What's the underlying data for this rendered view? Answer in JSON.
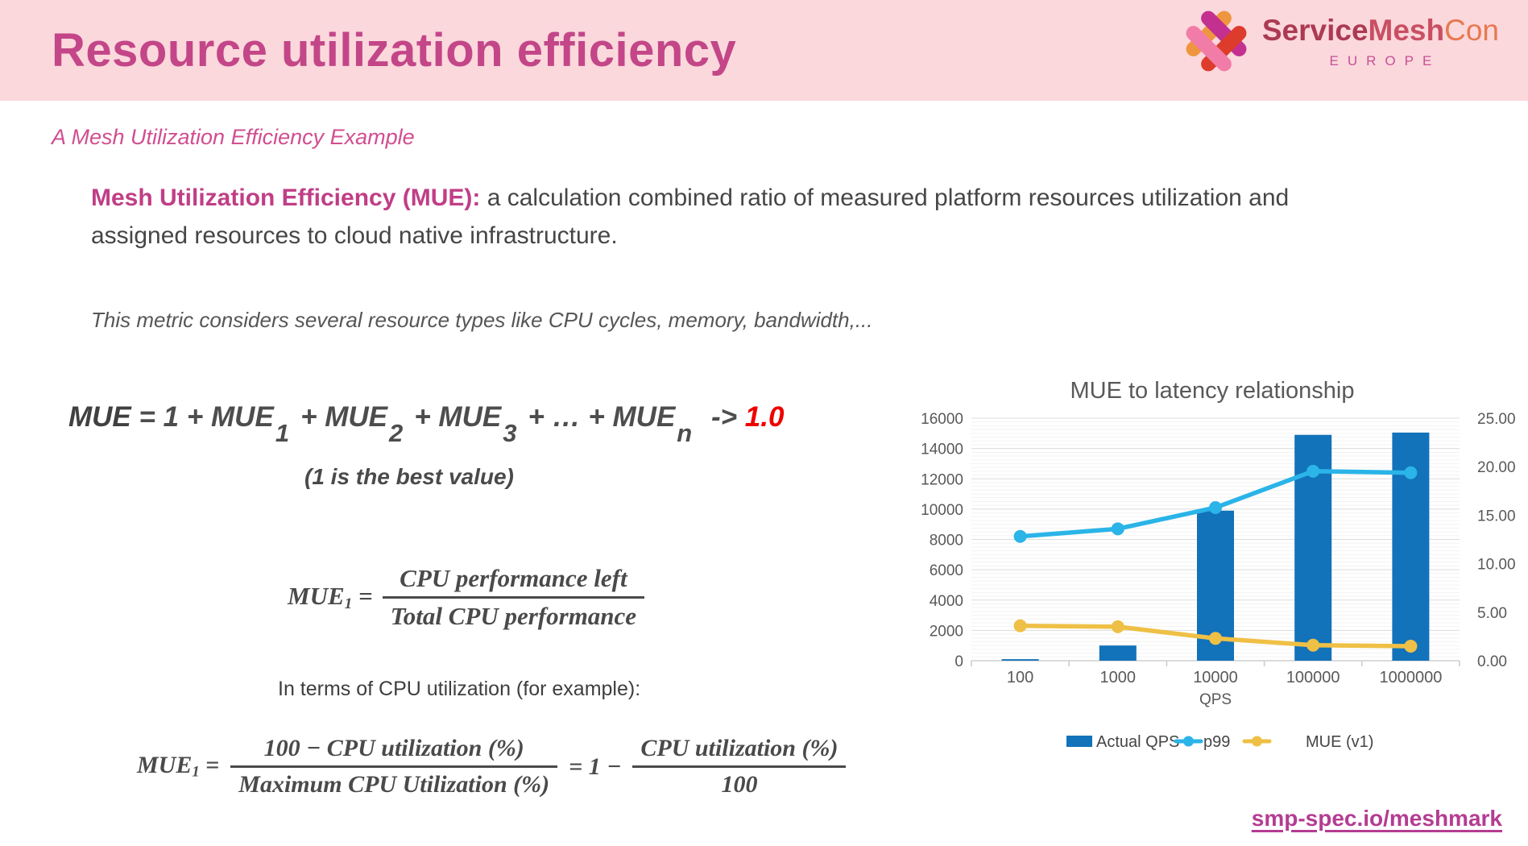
{
  "header": {
    "title": "Resource utilization efficiency",
    "logo": {
      "brand_service": "Service",
      "brand_mesh": "Mesh",
      "brand_con": "Con",
      "region": "EUROPE"
    }
  },
  "subtitle": "A Mesh Utilization Efficiency Example",
  "definition": {
    "lead": "Mesh Utilization Efficiency (MUE):",
    "body": " a calculation combined ratio of measured platform resources utilization and assigned resources to cloud native infrastructure."
  },
  "note": "This metric considers several resource types like CPU cycles, memory, bandwidth,...",
  "formula_sum": {
    "lead": "MUE",
    "t1": " = 1 + MUE",
    "s1": "1",
    "t2": "+ MUE",
    "s2": "2",
    "t3": "+ MUE",
    "s3": "3",
    "t4": "+ … + MUE",
    "s4": "n",
    "arrow": " -> ",
    "target": "1.0",
    "caption": "(1 is the best value)"
  },
  "formula_mue1": {
    "lhs": "MUE",
    "lhs_sub": "1",
    "equals": "=",
    "numerator": "CPU performance left",
    "denominator": "Total CPU performance"
  },
  "cpu_note": "In terms of CPU utilization (for example):",
  "formula_cpu": {
    "lhs": "MUE",
    "lhs_sub": "1",
    "equals": "=",
    "frac1_num": "100 − CPU utilization (%)",
    "frac1_den": "Maximum CPU Utilization (%)",
    "mid": "= 1 −",
    "frac2_num": "CPU utilization (%)",
    "frac2_den": "100"
  },
  "footer": {
    "link": "smp-spec.io/meshmark"
  },
  "colors": {
    "header_bg": "#fbd8dc",
    "title": "#c34688",
    "link": "#b43c92",
    "bar_blue": "#1272ba",
    "line_cyan": "#2ab4e8",
    "line_yellow": "#efc046",
    "axis_text": "#595959"
  },
  "chart_data": {
    "type": "combo",
    "title": "MUE to latency relationship",
    "categories": [
      "100",
      "1000",
      "10000",
      "100000",
      "1000000"
    ],
    "xlabel": "QPS",
    "grid": true,
    "legend_position": "bottom",
    "left_axis": {
      "min": 0,
      "max": 16000,
      "step": 2000,
      "ticks": [
        "0",
        "2000",
        "4000",
        "6000",
        "8000",
        "10000",
        "12000",
        "14000",
        "16000"
      ]
    },
    "right_axis": {
      "min": 0,
      "max": 25,
      "step": 5,
      "ticks": [
        "0.00",
        "5.00",
        "10.00",
        "15.00",
        "20.00",
        "25.00"
      ]
    },
    "series": [
      {
        "name": "Actual QPS",
        "type": "bar",
        "axis": "left",
        "color": "#1272ba",
        "values": [
          100,
          1000,
          9900,
          14900,
          15050
        ]
      },
      {
        "name": "p99",
        "type": "line",
        "axis": "left",
        "color": "#2ab4e8",
        "values": [
          8200,
          8700,
          10100,
          12500,
          12400
        ]
      },
      {
        "name": "MUE (v1)",
        "type": "line",
        "axis": "right",
        "color": "#efc046",
        "values": [
          3.6,
          3.5,
          2.3,
          1.6,
          1.5
        ]
      }
    ]
  }
}
